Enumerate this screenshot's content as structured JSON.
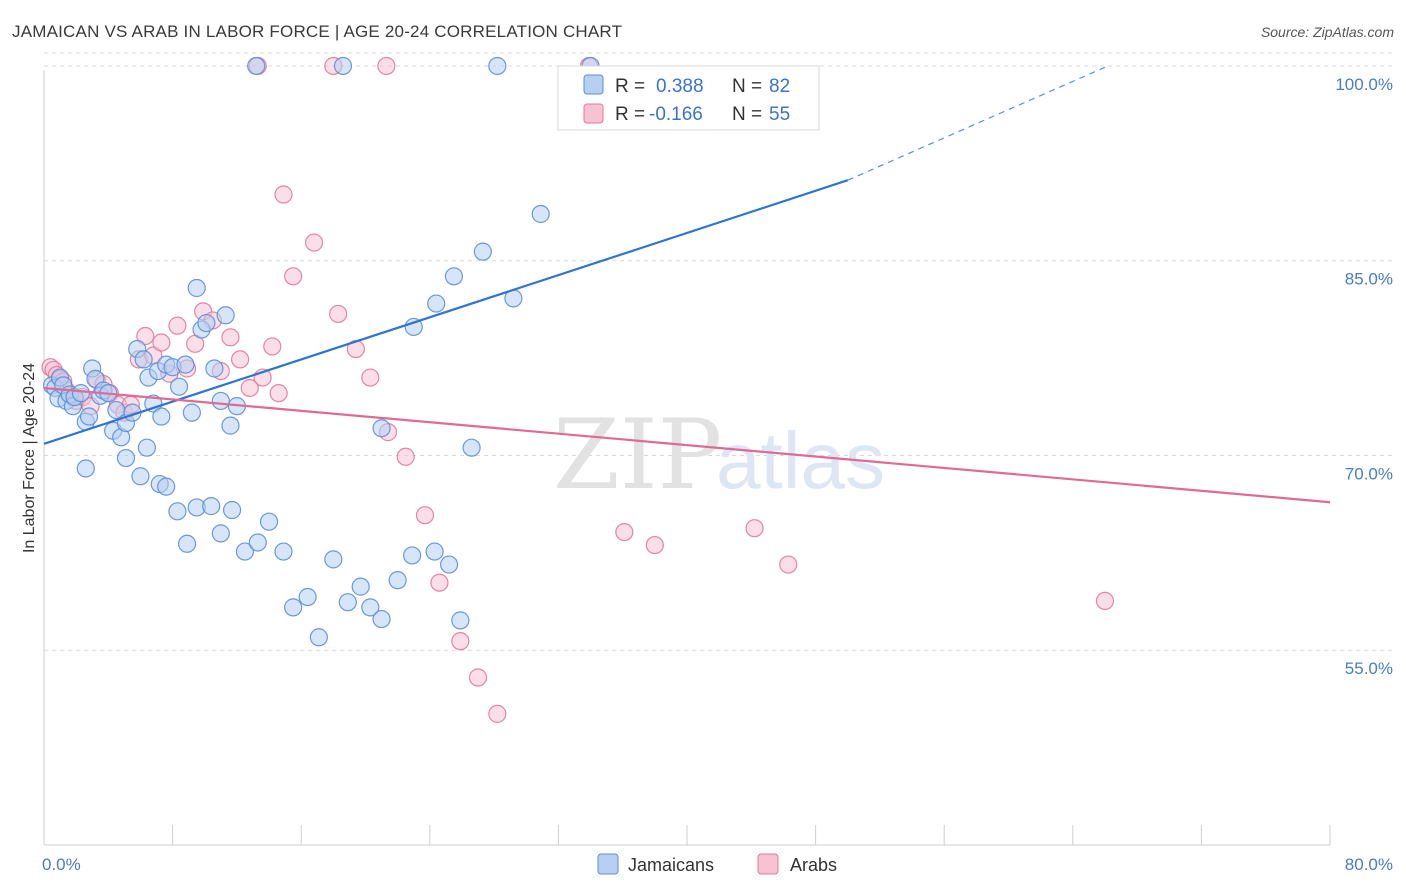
{
  "title": "JAMAICAN VS ARAB IN LABOR FORCE | AGE 20-24 CORRELATION CHART",
  "source": "Source: ZipAtlas.com",
  "watermark": {
    "zip": "ZIP",
    "atlas": "atlas"
  },
  "colors": {
    "jamaicans_fill": "#b7d0f2",
    "jamaicans_stroke": "#5b8fd6",
    "jamaicans_line": "#2f74d0",
    "arabs_fill": "#f7c3d3",
    "arabs_stroke": "#e07a9c",
    "arabs_line": "#e06a95",
    "grid": "#d8d8d8",
    "tick_text": "#4a7cc4"
  },
  "legend": {
    "jamaicans": {
      "r_label": "R = ",
      "r_value": "0.388",
      "n_label": "N = ",
      "n_value": "82"
    },
    "arabs": {
      "r_label": "R = ",
      "r_value": "-0.166",
      "n_label": "N = ",
      "n_value": "55"
    }
  },
  "bottom_legend": {
    "jamaicans": "Jamaicans",
    "arabs": "Arabs"
  },
  "chart_data": {
    "type": "scatter",
    "title": "JAMAICAN VS ARAB IN LABOR FORCE | AGE 20-24 CORRELATION CHART",
    "xlabel": "",
    "ylabel": "In Labor Force | Age 20-24",
    "xlim": [
      0,
      80
    ],
    "ylim": [
      40,
      102
    ],
    "x_ticks": [
      {
        "value": 0,
        "label": "0.0%"
      },
      {
        "value": 80,
        "label": "80.0%"
      }
    ],
    "y_ticks": [
      {
        "value": 55,
        "label": "55.0%"
      },
      {
        "value": 70,
        "label": "70.0%"
      },
      {
        "value": 85,
        "label": "85.0%"
      },
      {
        "value": 100,
        "label": "100.0%"
      }
    ],
    "grid": true,
    "legend_position": "top-center",
    "series": [
      {
        "name": "Jamaicans",
        "r": 0.388,
        "n": 82,
        "trend": {
          "x0": 0,
          "y0": 70.9,
          "x1": 50,
          "y1": 91.2,
          "dash_x1": 66,
          "dash_y1": 99.9
        },
        "points": [
          [
            0.5,
            75.4
          ],
          [
            0.7,
            75.2
          ],
          [
            0.9,
            74.4
          ],
          [
            1.0,
            76.0
          ],
          [
            1.2,
            75.4
          ],
          [
            1.4,
            74.2
          ],
          [
            1.6,
            74.7
          ],
          [
            1.8,
            73.8
          ],
          [
            1.9,
            74.5
          ],
          [
            2.3,
            74.8
          ],
          [
            2.6,
            72.6
          ],
          [
            2.8,
            73.0
          ],
          [
            3.0,
            76.7
          ],
          [
            3.2,
            75.9
          ],
          [
            3.5,
            74.6
          ],
          [
            3.7,
            75.0
          ],
          [
            4.0,
            74.8
          ],
          [
            4.3,
            71.9
          ],
          [
            4.5,
            73.5
          ],
          [
            4.8,
            71.4
          ],
          [
            5.1,
            72.5
          ],
          [
            5.5,
            73.3
          ],
          [
            5.8,
            78.2
          ],
          [
            6.2,
            77.4
          ],
          [
            6.5,
            76.0
          ],
          [
            6.8,
            74.0
          ],
          [
            7.1,
            76.5
          ],
          [
            7.3,
            73.0
          ],
          [
            7.6,
            77.0
          ],
          [
            8.0,
            76.8
          ],
          [
            8.4,
            75.3
          ],
          [
            8.8,
            77.0
          ],
          [
            9.2,
            73.3
          ],
          [
            9.5,
            82.9
          ],
          [
            9.8,
            79.7
          ],
          [
            10.1,
            80.2
          ],
          [
            10.6,
            76.7
          ],
          [
            11.0,
            74.2
          ],
          [
            11.3,
            80.8
          ],
          [
            11.6,
            72.3
          ],
          [
            12.0,
            73.8
          ],
          [
            2.6,
            69.0
          ],
          [
            5.1,
            69.8
          ],
          [
            6.0,
            68.4
          ],
          [
            6.4,
            70.6
          ],
          [
            7.2,
            67.8
          ],
          [
            7.6,
            67.6
          ],
          [
            8.3,
            65.7
          ],
          [
            8.9,
            63.2
          ],
          [
            9.5,
            66.0
          ],
          [
            10.4,
            66.1
          ],
          [
            11.0,
            64.0
          ],
          [
            11.7,
            65.8
          ],
          [
            12.5,
            62.6
          ],
          [
            13.3,
            63.3
          ],
          [
            14.0,
            64.9
          ],
          [
            14.9,
            62.6
          ],
          [
            15.5,
            58.3
          ],
          [
            16.4,
            59.1
          ],
          [
            17.1,
            56.0
          ],
          [
            18.0,
            62.0
          ],
          [
            18.9,
            58.7
          ],
          [
            19.7,
            59.9
          ],
          [
            20.3,
            58.3
          ],
          [
            21.0,
            57.4
          ],
          [
            22.0,
            60.4
          ],
          [
            22.9,
            62.3
          ],
          [
            24.3,
            62.6
          ],
          [
            25.2,
            61.6
          ],
          [
            25.9,
            57.3
          ],
          [
            26.6,
            70.6
          ],
          [
            21.0,
            72.1
          ],
          [
            23.0,
            79.9
          ],
          [
            24.4,
            81.7
          ],
          [
            25.5,
            83.8
          ],
          [
            27.3,
            85.7
          ],
          [
            29.2,
            82.1
          ],
          [
            30.9,
            88.6
          ],
          [
            13.2,
            100.0
          ],
          [
            18.6,
            100.0
          ],
          [
            28.2,
            100.0
          ],
          [
            34.0,
            100.0
          ]
        ]
      },
      {
        "name": "Arabs",
        "r": -0.166,
        "n": 55,
        "trend": {
          "x0": 0,
          "y0": 75.2,
          "x1": 80,
          "y1": 66.4
        },
        "points": [
          [
            0.4,
            76.8
          ],
          [
            0.6,
            76.6
          ],
          [
            0.8,
            76.2
          ],
          [
            1.0,
            75.9
          ],
          [
            1.2,
            75.7
          ],
          [
            1.4,
            75.0
          ],
          [
            1.7,
            74.6
          ],
          [
            2.0,
            74.2
          ],
          [
            2.4,
            74.5
          ],
          [
            2.9,
            73.8
          ],
          [
            3.3,
            75.8
          ],
          [
            3.7,
            75.5
          ],
          [
            4.1,
            74.8
          ],
          [
            4.6,
            73.9
          ],
          [
            5.0,
            73.3
          ],
          [
            5.4,
            73.9
          ],
          [
            5.9,
            77.4
          ],
          [
            6.3,
            79.2
          ],
          [
            6.8,
            77.7
          ],
          [
            7.3,
            78.7
          ],
          [
            7.8,
            76.3
          ],
          [
            8.3,
            80.0
          ],
          [
            8.9,
            76.7
          ],
          [
            9.4,
            78.6
          ],
          [
            9.9,
            81.1
          ],
          [
            10.5,
            80.4
          ],
          [
            11.0,
            76.5
          ],
          [
            11.6,
            79.1
          ],
          [
            12.2,
            77.4
          ],
          [
            12.8,
            75.2
          ],
          [
            13.6,
            76.0
          ],
          [
            14.2,
            78.4
          ],
          [
            14.6,
            74.8
          ],
          [
            15.5,
            83.8
          ],
          [
            16.8,
            86.4
          ],
          [
            18.3,
            80.9
          ],
          [
            19.4,
            78.2
          ],
          [
            20.3,
            76.0
          ],
          [
            21.4,
            71.8
          ],
          [
            22.5,
            69.9
          ],
          [
            23.7,
            65.4
          ],
          [
            24.6,
            60.2
          ],
          [
            25.9,
            55.7
          ],
          [
            27.0,
            52.9
          ],
          [
            28.2,
            50.1
          ],
          [
            14.9,
            90.1
          ],
          [
            13.3,
            100.0
          ],
          [
            18.0,
            100.0
          ],
          [
            21.3,
            100.0
          ],
          [
            33.9,
            100.0
          ],
          [
            36.1,
            64.1
          ],
          [
            38.0,
            63.1
          ],
          [
            44.2,
            64.4
          ],
          [
            46.3,
            61.6
          ],
          [
            66.0,
            58.8
          ]
        ]
      }
    ]
  }
}
